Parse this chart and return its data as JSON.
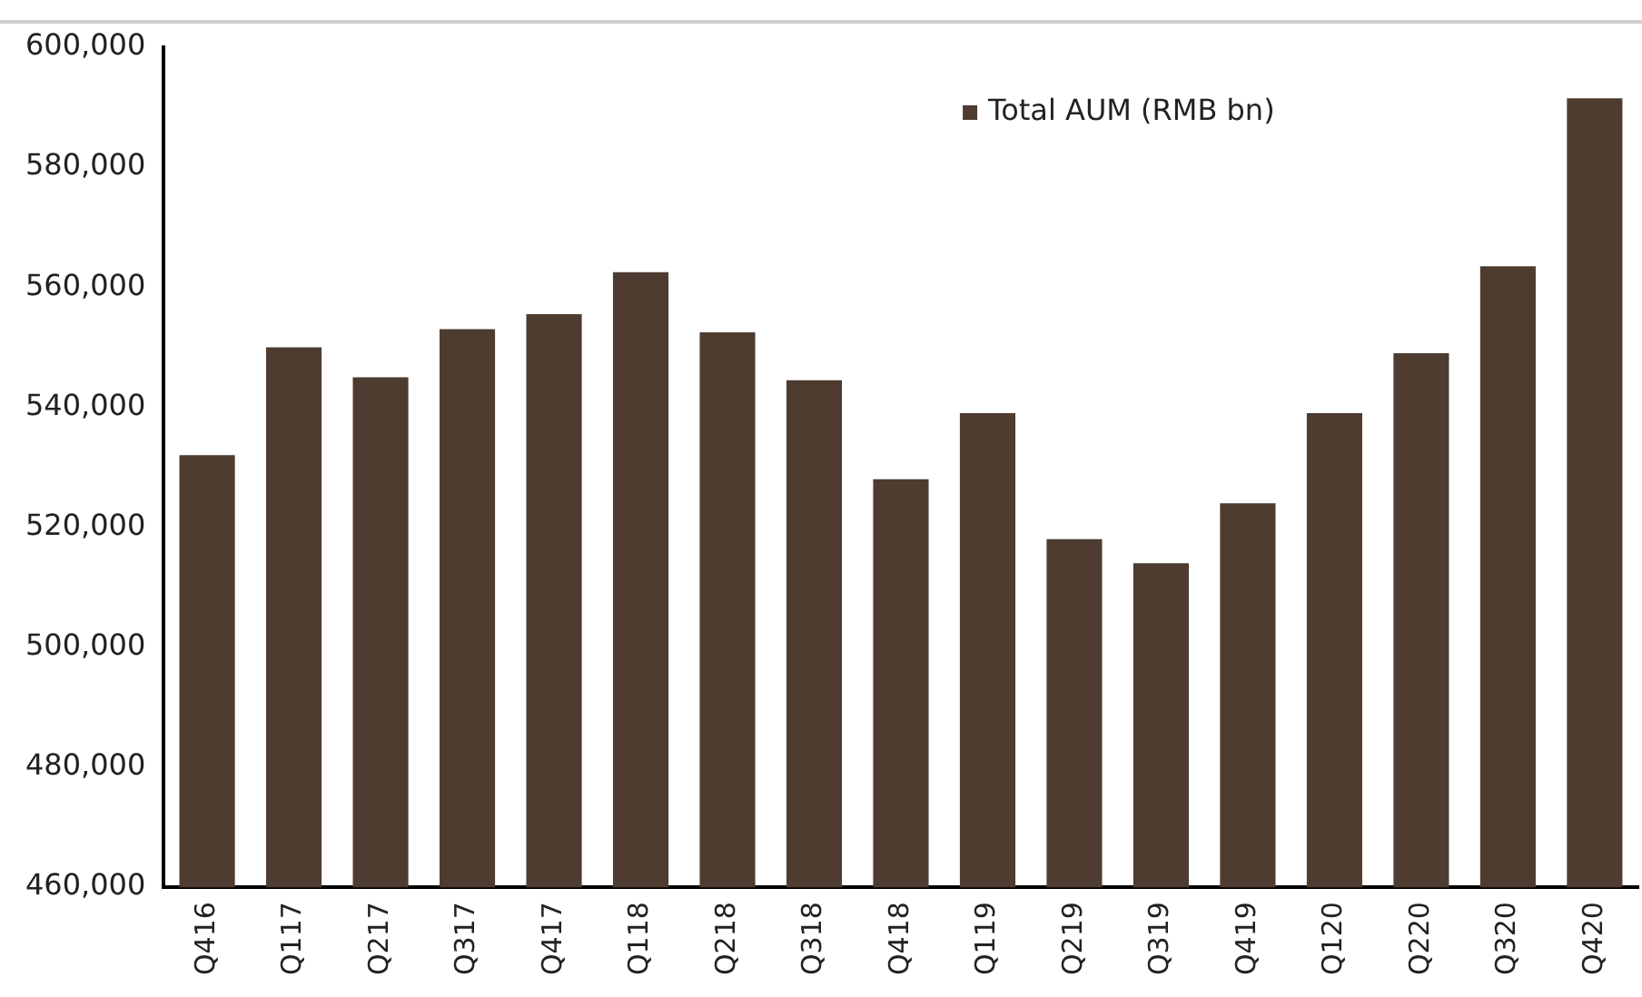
{
  "chart_data": {
    "type": "bar",
    "categories": [
      "Q416",
      "Q117",
      "Q217",
      "Q317",
      "Q417",
      "Q118",
      "Q218",
      "Q318",
      "Q418",
      "Q119",
      "Q219",
      "Q319",
      "Q419",
      "Q120",
      "Q220",
      "Q320",
      "Q420"
    ],
    "series": [
      {
        "name": "Total AUM (RMB bn)",
        "color": "#4e3c31",
        "values": [
          532000,
          550000,
          545000,
          553000,
          555500,
          562500,
          552500,
          544500,
          528000,
          539000,
          518000,
          514000,
          524000,
          539000,
          549000,
          563500,
          591500
        ]
      }
    ],
    "ylim": [
      460000,
      600000
    ],
    "yticks": [
      {
        "value": 460000,
        "label": "460,000"
      },
      {
        "value": 480000,
        "label": "480,000"
      },
      {
        "value": 500000,
        "label": "500,000"
      },
      {
        "value": 520000,
        "label": "520,000"
      },
      {
        "value": 540000,
        "label": "540,000"
      },
      {
        "value": 560000,
        "label": "560,000"
      },
      {
        "value": 580000,
        "label": "580,000"
      },
      {
        "value": 600000,
        "label": "600,000"
      }
    ],
    "grid": false,
    "legend": "top right"
  }
}
